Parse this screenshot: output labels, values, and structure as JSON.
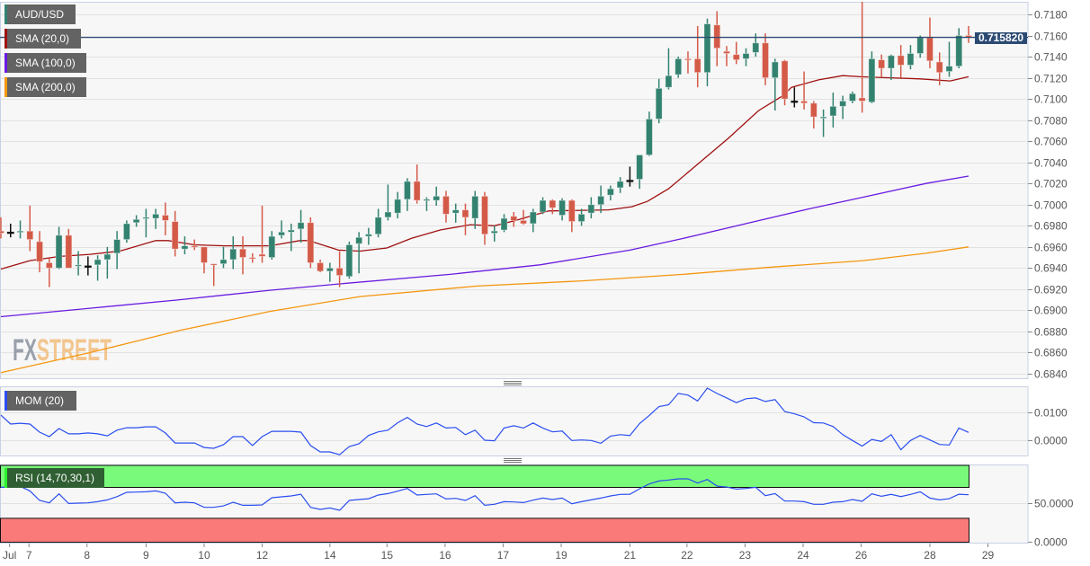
{
  "legend": {
    "symbol": "AUD/USD",
    "sma20": "SMA (20,0)",
    "sma100": "SMA (100,0)",
    "sma200": "SMA (200,0)",
    "mom": "MOM (20)",
    "rsi": "RSI (14,70,30,1)"
  },
  "current_price": "0.715820",
  "watermark": {
    "fx": "FX",
    "street": "STREET"
  },
  "colors": {
    "up": "#338270",
    "down": "#d45a48",
    "doji": "#111111",
    "sma20": "#a01010",
    "sma100": "#6a1be0",
    "sma200": "#f5960f",
    "mom": "#2a4ef0",
    "rsi": "#2a4ef0",
    "price_line": "#2b4a73",
    "overbought": "#7afa7a",
    "oversold": "#fa7a7a"
  },
  "x_ticks": [
    {
      "label": "Jul",
      "index": 0.9
    },
    {
      "label": "7",
      "index": 2.9
    },
    {
      "label": "8",
      "index": 8.9
    },
    {
      "label": "9",
      "index": 15
    },
    {
      "label": "10",
      "index": 21
    },
    {
      "label": "12",
      "index": 27
    },
    {
      "label": "14",
      "index": 34
    },
    {
      "label": "15",
      "index": 39.9
    },
    {
      "label": "16",
      "index": 45.9
    },
    {
      "label": "17",
      "index": 51.9
    },
    {
      "label": "19",
      "index": 57.9
    },
    {
      "label": "21",
      "index": 65
    },
    {
      "label": "22",
      "index": 70.9
    },
    {
      "label": "23",
      "index": 76.9
    },
    {
      "label": "24",
      "index": 82.9
    },
    {
      "label": "26",
      "index": 88.9
    },
    {
      "label": "28",
      "index": 96
    },
    {
      "label": "29",
      "index": 102
    }
  ],
  "chart_data": [
    {
      "type": "candlestick",
      "title": "AUD/USD",
      "ylim": [
        0.684,
        0.718
      ],
      "y_ticks": [
        "0.6840",
        "0.6860",
        "0.6880",
        "0.6900",
        "0.6920",
        "0.6940",
        "0.6960",
        "0.6980",
        "0.7000",
        "0.7020",
        "0.7040",
        "0.7060",
        "0.7080",
        "0.7100",
        "0.7120",
        "0.7140",
        "0.7160",
        "0.7180"
      ],
      "grid": true,
      "ohlc": [
        [
          0.6975,
          0.6988,
          0.6968,
          0.6973
        ],
        [
          0.6974,
          0.6982,
          0.6969,
          0.6974
        ],
        [
          0.6974,
          0.6985,
          0.6968,
          0.6975
        ],
        [
          0.6975,
          0.6999,
          0.6956,
          0.6967
        ],
        [
          0.6965,
          0.6975,
          0.6936,
          0.6946
        ],
        [
          0.6945,
          0.6949,
          0.6922,
          0.694
        ],
        [
          0.694,
          0.6979,
          0.6939,
          0.6971
        ],
        [
          0.6971,
          0.6977,
          0.694,
          0.694
        ],
        [
          0.6942,
          0.6956,
          0.6933,
          0.6943
        ],
        [
          0.6942,
          0.6951,
          0.6933,
          0.6942
        ],
        [
          0.6943,
          0.6952,
          0.6928,
          0.6948
        ],
        [
          0.6948,
          0.696,
          0.693,
          0.6953
        ],
        [
          0.6954,
          0.6975,
          0.6939,
          0.6967
        ],
        [
          0.6967,
          0.6985,
          0.6964,
          0.6982
        ],
        [
          0.6983,
          0.699,
          0.6979,
          0.6986
        ],
        [
          0.6987,
          0.6996,
          0.6969,
          0.6988
        ],
        [
          0.6987,
          0.6996,
          0.6977,
          0.6991
        ],
        [
          0.699,
          0.7002,
          0.6971,
          0.6985
        ],
        [
          0.6984,
          0.6994,
          0.6951,
          0.6958
        ],
        [
          0.6958,
          0.697,
          0.6953,
          0.6961
        ],
        [
          0.6961,
          0.6967,
          0.6957,
          0.696
        ],
        [
          0.696,
          0.696,
          0.6935,
          0.6945
        ],
        [
          0.6944,
          0.6944,
          0.6923,
          0.6943
        ],
        [
          0.6944,
          0.696,
          0.694,
          0.6948
        ],
        [
          0.6948,
          0.697,
          0.6939,
          0.6958
        ],
        [
          0.6958,
          0.697,
          0.6934,
          0.695
        ],
        [
          0.695,
          0.6954,
          0.6945,
          0.6949
        ],
        [
          0.6953,
          0.6999,
          0.6945,
          0.6951
        ],
        [
          0.695,
          0.6975,
          0.6948,
          0.697
        ],
        [
          0.6971,
          0.6985,
          0.6968,
          0.6974
        ],
        [
          0.6974,
          0.6982,
          0.6956,
          0.6976
        ],
        [
          0.6977,
          0.6995,
          0.6964,
          0.6983
        ],
        [
          0.6983,
          0.6988,
          0.694,
          0.6945
        ],
        [
          0.6945,
          0.6948,
          0.6936,
          0.6937
        ],
        [
          0.6937,
          0.6945,
          0.6927,
          0.694
        ],
        [
          0.694,
          0.6956,
          0.6922,
          0.6933
        ],
        [
          0.6932,
          0.6965,
          0.693,
          0.6962
        ],
        [
          0.6963,
          0.6974,
          0.6935,
          0.6969
        ],
        [
          0.697,
          0.6978,
          0.6962,
          0.6972
        ],
        [
          0.6972,
          0.6996,
          0.6969,
          0.6988
        ],
        [
          0.6988,
          0.7019,
          0.6985,
          0.6993
        ],
        [
          0.6992,
          0.7012,
          0.6987,
          0.7005
        ],
        [
          0.7005,
          0.7025,
          0.6994,
          0.7022
        ],
        [
          0.7022,
          0.7038,
          0.7001,
          0.7004
        ],
        [
          0.7004,
          0.7007,
          0.6994,
          0.7005
        ],
        [
          0.7004,
          0.7017,
          0.6999,
          0.7008
        ],
        [
          0.7008,
          0.7013,
          0.6983,
          0.6991
        ],
        [
          0.6992,
          0.7001,
          0.6983,
          0.6995
        ],
        [
          0.6995,
          0.7001,
          0.6971,
          0.6988
        ],
        [
          0.6987,
          0.7013,
          0.6977,
          0.7008
        ],
        [
          0.7008,
          0.7012,
          0.6962,
          0.6972
        ],
        [
          0.6973,
          0.698,
          0.6965,
          0.6975
        ],
        [
          0.6976,
          0.6991,
          0.6974,
          0.6987
        ],
        [
          0.6989,
          0.6993,
          0.6979,
          0.6985
        ],
        [
          0.6985,
          0.6995,
          0.6981,
          0.6982
        ],
        [
          0.6982,
          0.6996,
          0.6974,
          0.6993
        ],
        [
          0.6993,
          0.7007,
          0.6991,
          0.7004
        ],
        [
          0.7004,
          0.7005,
          0.6991,
          0.6997
        ],
        [
          0.699,
          0.7006,
          0.6985,
          0.7004
        ],
        [
          0.7004,
          0.7005,
          0.6974,
          0.6984
        ],
        [
          0.6984,
          0.6996,
          0.698,
          0.6991
        ],
        [
          0.6992,
          0.7007,
          0.6987,
          0.7
        ],
        [
          0.7,
          0.7018,
          0.6992,
          0.7008
        ],
        [
          0.7009,
          0.7018,
          0.7004,
          0.7015
        ],
        [
          0.7016,
          0.7026,
          0.7011,
          0.7022
        ],
        [
          0.7023,
          0.7036,
          0.7017,
          0.7023
        ],
        [
          0.7024,
          0.7047,
          0.7015,
          0.7047
        ],
        [
          0.7047,
          0.7088,
          0.7046,
          0.7081
        ],
        [
          0.7081,
          0.7119,
          0.7077,
          0.711
        ],
        [
          0.7111,
          0.7148,
          0.7109,
          0.7122
        ],
        [
          0.7123,
          0.714,
          0.712,
          0.7138
        ],
        [
          0.7138,
          0.7145,
          0.7124,
          0.7137
        ],
        [
          0.7138,
          0.7169,
          0.7111,
          0.7125
        ],
        [
          0.7125,
          0.7176,
          0.7112,
          0.7171
        ],
        [
          0.717,
          0.7183,
          0.7131,
          0.7148
        ],
        [
          0.7145,
          0.715,
          0.7131,
          0.7143
        ],
        [
          0.7142,
          0.7154,
          0.7133,
          0.7137
        ],
        [
          0.7138,
          0.7148,
          0.7131,
          0.7143
        ],
        [
          0.7144,
          0.7162,
          0.714,
          0.7153
        ],
        [
          0.7153,
          0.7162,
          0.7113,
          0.712
        ],
        [
          0.712,
          0.7138,
          0.7089,
          0.7135
        ],
        [
          0.7136,
          0.7137,
          0.7094,
          0.71
        ],
        [
          0.7098,
          0.7111,
          0.7092,
          0.7098
        ],
        [
          0.7098,
          0.7126,
          0.709,
          0.7096
        ],
        [
          0.7096,
          0.7098,
          0.7072,
          0.7083
        ],
        [
          0.7082,
          0.709,
          0.7064,
          0.7083
        ],
        [
          0.7084,
          0.7106,
          0.7073,
          0.7093
        ],
        [
          0.7093,
          0.7103,
          0.7081,
          0.7098
        ],
        [
          0.7098,
          0.7107,
          0.7096,
          0.7105
        ],
        [
          0.7101,
          0.7194,
          0.7087,
          0.7098
        ],
        [
          0.7097,
          0.7145,
          0.7096,
          0.7138
        ],
        [
          0.7137,
          0.7142,
          0.7121,
          0.7129
        ],
        [
          0.7129,
          0.7142,
          0.7118,
          0.7141
        ],
        [
          0.7141,
          0.7151,
          0.712,
          0.7132
        ],
        [
          0.7132,
          0.7151,
          0.7128,
          0.7143
        ],
        [
          0.7143,
          0.716,
          0.7139,
          0.7158
        ],
        [
          0.7158,
          0.7177,
          0.7129,
          0.7136
        ],
        [
          0.7135,
          0.7144,
          0.7113,
          0.7125
        ],
        [
          0.7126,
          0.7154,
          0.7121,
          0.7131
        ],
        [
          0.7131,
          0.7167,
          0.7129,
          0.716
        ],
        [
          0.716,
          0.7169,
          0.7153,
          0.7158
        ]
      ],
      "series": [
        {
          "name": "SMA (20,0)",
          "points": [
            [
              0,
              0.6939
            ],
            [
              3,
              0.6947
            ],
            [
              6.1,
              0.6951
            ],
            [
              9.2,
              0.6953
            ],
            [
              12.3,
              0.6956
            ],
            [
              16,
              0.6966
            ],
            [
              17.3,
              0.6966
            ],
            [
              20,
              0.6962
            ],
            [
              23.1,
              0.6961
            ],
            [
              26.2,
              0.6961
            ],
            [
              27.8,
              0.6961
            ],
            [
              30.9,
              0.6966
            ],
            [
              31.8,
              0.6966
            ],
            [
              34.9,
              0.6957
            ],
            [
              37.1,
              0.6956
            ],
            [
              39.9,
              0.6959
            ],
            [
              42.4,
              0.6968
            ],
            [
              45.4,
              0.6976
            ],
            [
              48.5,
              0.6981
            ],
            [
              51,
              0.698
            ],
            [
              53.2,
              0.6985
            ],
            [
              56.6,
              0.6994
            ],
            [
              62.8,
              0.6995
            ],
            [
              65.2,
              0.6998
            ],
            [
              66.8,
              0.7003
            ],
            [
              69,
              0.7015
            ],
            [
              72.1,
              0.7039
            ],
            [
              75.2,
              0.7063
            ],
            [
              78.3,
              0.7089
            ],
            [
              80.8,
              0.7103
            ],
            [
              81.7,
              0.7111
            ],
            [
              84.5,
              0.7118
            ],
            [
              87,
              0.7122
            ],
            [
              88.8,
              0.7121
            ],
            [
              91.9,
              0.712
            ],
            [
              95,
              0.7119
            ],
            [
              98.1,
              0.7117
            ],
            [
              100,
              0.7121
            ]
          ]
        },
        {
          "name": "SMA (100,0)",
          "points": [
            [
              0,
              0.6894
            ],
            [
              9.2,
              0.6902
            ],
            [
              18.5,
              0.691
            ],
            [
              27.8,
              0.6919
            ],
            [
              35,
              0.6925
            ],
            [
              46.4,
              0.6934
            ],
            [
              55.7,
              0.6943
            ],
            [
              65,
              0.6957
            ],
            [
              70.5,
              0.6968
            ],
            [
              77,
              0.6982
            ],
            [
              83.5,
              0.6996
            ],
            [
              89.1,
              0.7007
            ],
            [
              95.6,
              0.702
            ],
            [
              100,
              0.7027
            ]
          ]
        },
        {
          "name": "SMA (200,0)",
          "points": [
            [
              0,
              0.6841
            ],
            [
              9.2,
              0.686
            ],
            [
              18.5,
              0.6881
            ],
            [
              27.8,
              0.6899
            ],
            [
              37.1,
              0.6913
            ],
            [
              49.2,
              0.6923
            ],
            [
              60.3,
              0.6928
            ],
            [
              70.5,
              0.6934
            ],
            [
              79.8,
              0.6941
            ],
            [
              89.1,
              0.6947
            ],
            [
              95.6,
              0.6954
            ],
            [
              100,
              0.696
            ]
          ]
        }
      ]
    },
    {
      "type": "line",
      "title": "MOM (20)",
      "y_ticks": [
        "0.0100",
        "0.0000"
      ],
      "values": [
        0.0089,
        0.0057,
        0.006,
        0.0057,
        0.0028,
        0.0012,
        0.0041,
        0.0022,
        0.0022,
        0.0025,
        0.0022,
        0.0015,
        0.0035,
        0.0044,
        0.0044,
        0.0047,
        0.0047,
        0.0025,
        -0.0011,
        -0.0011,
        -0.0011,
        -0.0027,
        -0.003,
        -0.0017,
        0.0012,
        0.0012,
        -0.002,
        0.0012,
        0.0031,
        0.0031,
        0.0031,
        0.0028,
        -0.002,
        -0.0043,
        -0.0043,
        -0.0053,
        -0.0024,
        -0.0014,
        0.0016,
        0.0029,
        0.0035,
        0.0062,
        0.0081,
        0.0057,
        0.0048,
        0.0061,
        0.0043,
        0.0045,
        0.0019,
        0.0035,
        -0.0001,
        -0.0003,
        0.0043,
        0.0051,
        0.0043,
        0.0061,
        0.0043,
        0.0029,
        0.0032,
        -0.0002,
        0.0,
        -0.0002,
        -0.0012,
        0.0014,
        0.0019,
        0.0016,
        0.0059,
        0.0088,
        0.012,
        0.0126,
        0.0167,
        0.0161,
        0.014,
        0.0186,
        0.0167,
        0.0151,
        0.0134,
        0.0148,
        0.0151,
        0.0138,
        0.0145,
        0.0102,
        0.0094,
        0.0083,
        0.0062,
        0.0061,
        0.0048,
        0.0019,
        -0.0002,
        -0.0022,
        0.0002,
        -0.0005,
        0.0019,
        -0.0035,
        -0.0002,
        0.0016,
        0.0,
        -0.0016,
        -0.0018,
        0.0043,
        0.0027
      ]
    },
    {
      "type": "line",
      "title": "RSI (14,70,30,1)",
      "y_ticks": [
        "50.0000",
        "0.0000"
      ],
      "ylim": [
        0,
        100
      ],
      "overbought": 70,
      "oversold": 30,
      "values": [
        70.1,
        70.5,
        71.3,
        65.5,
        53.1,
        50.0,
        61.6,
        49.2,
        49.6,
        50.0,
        51.5,
        53.8,
        58.0,
        63.6,
        64.0,
        64.3,
        65.5,
        62.4,
        50.0,
        50.8,
        50.0,
        44.2,
        44.2,
        46.1,
        50.8,
        46.9,
        46.9,
        47.3,
        56.6,
        57.8,
        58.9,
        61.2,
        44.2,
        41.5,
        43.4,
        40.3,
        53.1,
        54.3,
        55.4,
        60.1,
        62.0,
        65.1,
        68.6,
        60.1,
        60.9,
        61.6,
        55.0,
        55.8,
        53.1,
        59.3,
        46.9,
        48.1,
        51.5,
        51.2,
        50.4,
        53.5,
        56.2,
        54.3,
        56.2,
        48.8,
        51.5,
        53.8,
        56.2,
        58.9,
        60.9,
        61.2,
        68.2,
        74.4,
        78.3,
        79.5,
        81.0,
        81.0,
        75.6,
        80.2,
        71.7,
        70.5,
        67.8,
        68.6,
        70.1,
        59.3,
        62.0,
        52.3,
        52.3,
        51.5,
        48.1,
        48.1,
        50.8,
        51.5,
        54.3,
        52.0,
        61.6,
        58.5,
        60.9,
        58.1,
        60.9,
        64.3,
        56.2,
        53.8,
        55.4,
        61.2,
        60.5
      ]
    }
  ]
}
